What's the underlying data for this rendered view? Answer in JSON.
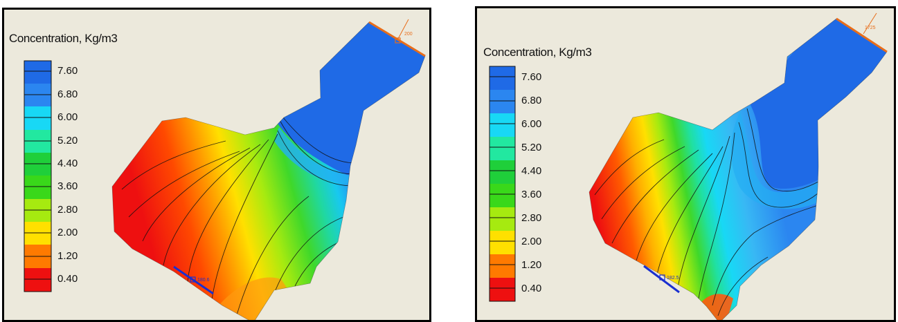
{
  "legend": {
    "title": "Concentration, Kg/m3",
    "levels": [
      "7.60",
      "6.80",
      "6.00",
      "5.20",
      "4.40",
      "3.60",
      "2.80",
      "2.00",
      "1.20",
      "0.40"
    ],
    "colors": [
      "#1f6ae6",
      "#2b86f0",
      "#18d8f5",
      "#22e8a0",
      "#1fcf3a",
      "#39d81a",
      "#a6ea10",
      "#ffe000",
      "#ff7a00",
      "#ee1010"
    ]
  },
  "panels": [
    {
      "id": "left",
      "inflow_label": "200",
      "outflow_label": "180.6"
    },
    {
      "id": "right",
      "inflow_label": "1725",
      "outflow_label": "182.5"
    }
  ]
}
